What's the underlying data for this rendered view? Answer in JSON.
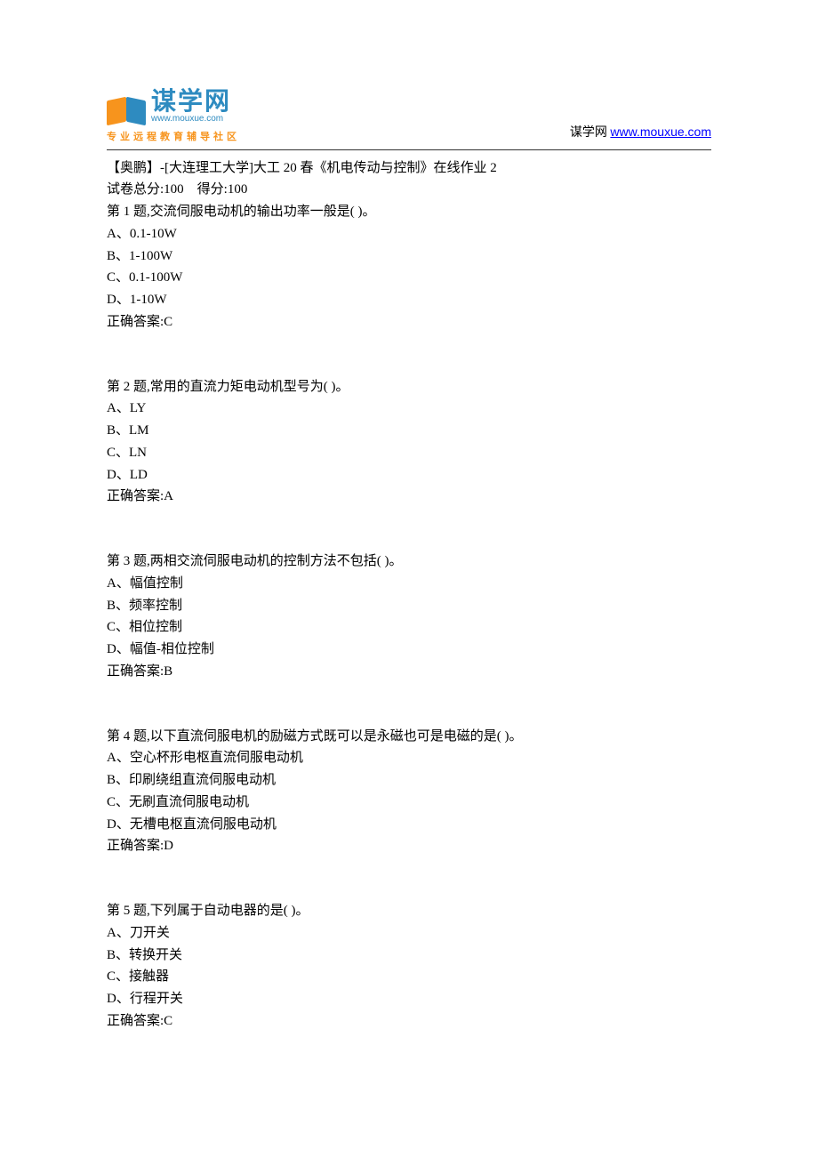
{
  "header": {
    "logo_cn": "谋学网",
    "logo_url": "www.mouxue.com",
    "tagline": [
      "专",
      "业",
      "远",
      "程",
      "教",
      "育",
      "辅",
      "导",
      "社",
      "区"
    ],
    "right_label": "谋学网",
    "right_link": "www.mouxue.com"
  },
  "exam": {
    "title": "【奥鹏】-[大连理工大学]大工 20 春《机电传动与控制》在线作业 2",
    "total_label": "试卷总分:100",
    "score_label": "得分:100"
  },
  "questions": [
    {
      "stem": "第 1 题,交流伺服电动机的输出功率一般是( )。",
      "options": [
        "A、0.1-10W",
        "B、1-100W",
        "C、0.1-100W",
        "D、1-10W"
      ],
      "answer": "正确答案:C"
    },
    {
      "stem": "第 2 题,常用的直流力矩电动机型号为( )。",
      "options": [
        "A、LY",
        "B、LM",
        "C、LN",
        "D、LD"
      ],
      "answer": "正确答案:A"
    },
    {
      "stem": "第 3 题,两相交流伺服电动机的控制方法不包括( )。",
      "options": [
        "A、幅值控制",
        "B、频率控制",
        "C、相位控制",
        "D、幅值-相位控制"
      ],
      "answer": "正确答案:B"
    },
    {
      "stem": "第 4 题,以下直流伺服电机的励磁方式既可以是永磁也可是电磁的是( )。",
      "options": [
        "A、空心杯形电枢直流伺服电动机",
        "B、印刷绕组直流伺服电动机",
        "C、无刷直流伺服电动机",
        "D、无槽电枢直流伺服电动机"
      ],
      "answer": "正确答案:D"
    },
    {
      "stem": "第 5 题,下列属于自动电器的是( )。",
      "options": [
        "A、刀开关",
        "B、转换开关",
        "C、接触器",
        "D、行程开关"
      ],
      "answer": "正确答案:C"
    }
  ],
  "colors": {
    "text": "#000000",
    "link": "#0000ff",
    "logo_blue": "#2e8bc0",
    "logo_orange": "#f7941d",
    "background": "#ffffff",
    "hr": "#333333"
  }
}
